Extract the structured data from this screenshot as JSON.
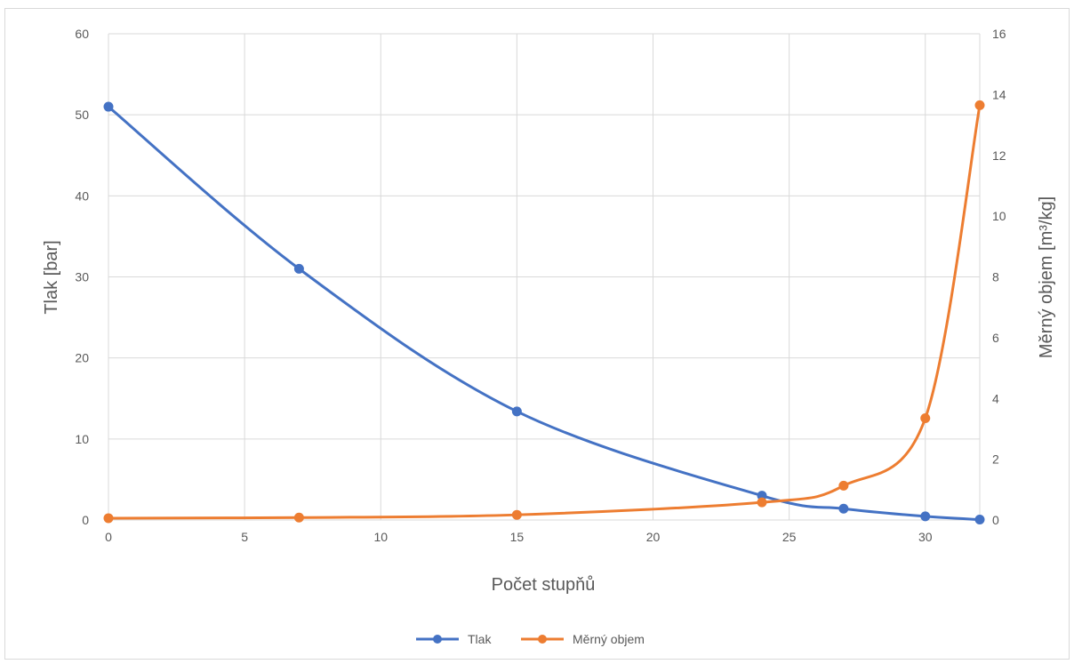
{
  "chart_data": {
    "type": "line",
    "xlabel": "Počet stupňů",
    "ylabel_left": "Tlak [bar]",
    "ylabel_right": "Měrný objem [m³/kg]",
    "xlim": [
      0,
      32
    ],
    "ylim_left": [
      0,
      60
    ],
    "ylim_right": [
      0,
      16
    ],
    "x_ticks": [
      0,
      5,
      10,
      15,
      20,
      25,
      30
    ],
    "y_ticks_left": [
      0,
      10,
      20,
      30,
      40,
      50,
      60
    ],
    "y_ticks_right": [
      0,
      2,
      4,
      6,
      8,
      10,
      12,
      14,
      16
    ],
    "grid": true,
    "legend_position": "bottom",
    "series": [
      {
        "name": "Tlak",
        "axis": "left",
        "color": "#4472c4",
        "smooth": true,
        "points": [
          [
            0,
            51
          ],
          [
            7,
            31
          ],
          [
            15,
            13.4
          ],
          [
            24,
            3.0
          ],
          [
            27,
            1.4
          ],
          [
            30,
            0.45
          ],
          [
            32,
            0.05
          ]
        ]
      },
      {
        "name": "Měrný objem",
        "axis": "right",
        "color": "#ed7d31",
        "smooth": true,
        "points": [
          [
            0,
            0.06
          ],
          [
            7,
            0.08
          ],
          [
            15,
            0.17
          ],
          [
            24,
            0.58
          ],
          [
            27,
            1.13
          ],
          [
            30,
            3.35
          ],
          [
            32,
            13.65
          ]
        ]
      }
    ]
  }
}
